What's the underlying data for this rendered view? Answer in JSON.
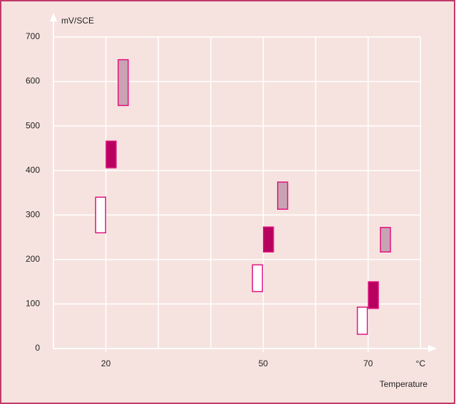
{
  "chart_data": {
    "type": "range",
    "y_label": "mV/SCE",
    "x_label": "Temperature",
    "x_unit": "°C",
    "xlim": [
      10,
      82
    ],
    "ylim": [
      0,
      700
    ],
    "xticks": [
      20,
      50,
      70
    ],
    "xgrid": [
      20,
      30,
      40,
      50,
      60,
      70,
      80
    ],
    "yticks": [
      0,
      100,
      200,
      300,
      400,
      500,
      600,
      700
    ],
    "grid": true,
    "series": [
      {
        "color": "#ffffff",
        "edge": "#e0137f",
        "x": [
          19,
          48.9,
          68.9
        ],
        "low": [
          260,
          128,
          32
        ],
        "high": [
          340,
          188,
          93
        ]
      },
      {
        "color": "#b8005f",
        "edge": "#e0137f",
        "x": [
          21,
          51,
          71
        ],
        "low": [
          406,
          217,
          90
        ],
        "high": [
          466,
          273,
          150
        ]
      },
      {
        "color": "#c9a3b4",
        "edge": "#e0137f",
        "x": [
          23.3,
          53.7,
          73.3
        ],
        "low": [
          546,
          313,
          217
        ],
        "high": [
          649,
          374,
          272
        ]
      }
    ]
  }
}
